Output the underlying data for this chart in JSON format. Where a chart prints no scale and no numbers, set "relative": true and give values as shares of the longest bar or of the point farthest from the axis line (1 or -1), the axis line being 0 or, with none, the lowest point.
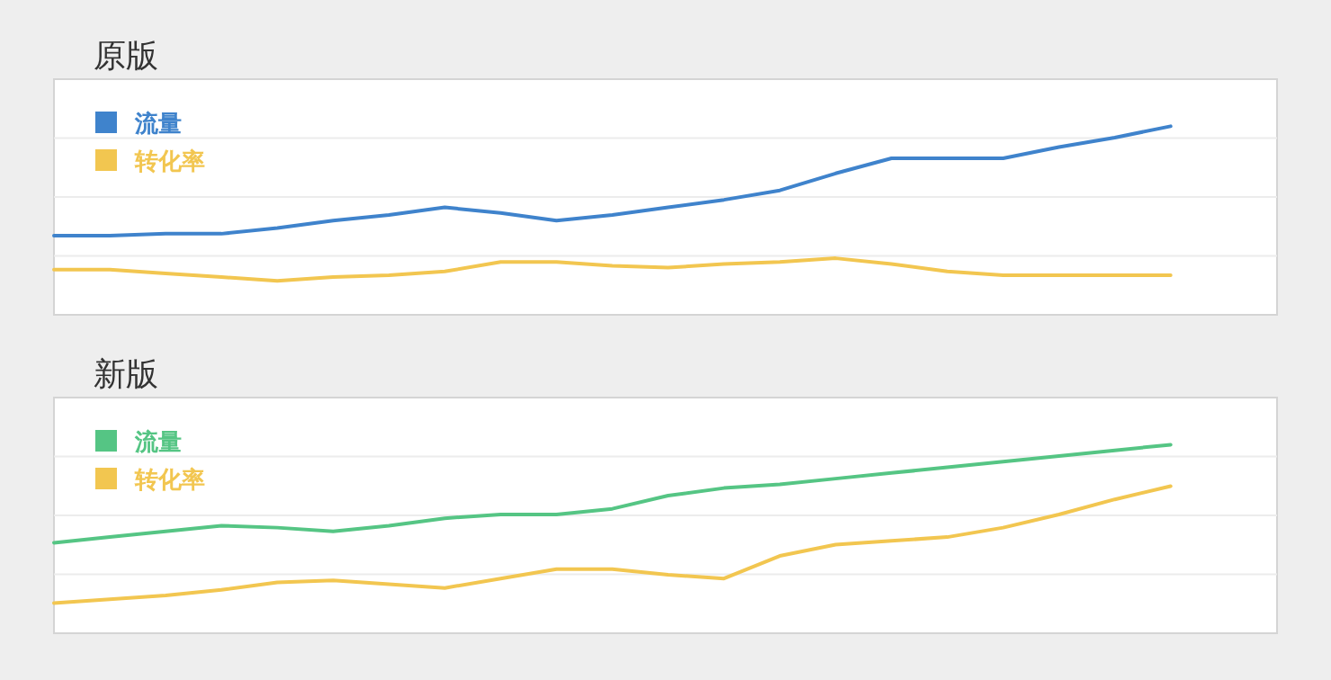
{
  "chart_data": [
    {
      "type": "line",
      "title": "原版",
      "relative": true,
      "grid": "y",
      "legend": "top left",
      "categories": [
        null,
        null,
        null,
        null,
        null,
        null,
        null,
        null,
        null,
        null,
        null,
        null,
        null,
        null,
        null,
        null,
        null,
        null,
        null,
        null,
        null
      ],
      "series": [
        {
          "name": "流量",
          "color": "#3f83cc",
          "values": [
            0.42,
            0.42,
            0.43,
            0.43,
            0.46,
            0.5,
            0.53,
            0.57,
            0.54,
            0.5,
            0.53,
            0.57,
            0.61,
            0.66,
            0.75,
            0.83,
            0.83,
            0.83,
            0.89,
            0.94,
            1
          ]
        },
        {
          "name": "转化率",
          "color": "#f2c650",
          "values": [
            0.24,
            0.24,
            0.22,
            0.2,
            0.18,
            0.2,
            0.21,
            0.23,
            0.28,
            0.28,
            0.26,
            0.25,
            0.27,
            0.28,
            0.3,
            0.27,
            0.23,
            0.21,
            0.21,
            0.21,
            0.21
          ]
        }
      ]
    },
    {
      "type": "line",
      "title": "新版",
      "relative": true,
      "grid": "y",
      "legend": "top left",
      "categories": [
        null,
        null,
        null,
        null,
        null,
        null,
        null,
        null,
        null,
        null,
        null,
        null,
        null,
        null,
        null,
        null,
        null,
        null,
        null,
        null,
        null
      ],
      "series": [
        {
          "name": "流量",
          "color": "#55c584",
          "values": [
            0.48,
            0.51,
            0.54,
            0.57,
            0.56,
            0.54,
            0.57,
            0.61,
            0.63,
            0.63,
            0.66,
            0.73,
            0.77,
            0.79,
            0.82,
            0.85,
            0.88,
            0.91,
            0.94,
            0.97,
            1
          ]
        },
        {
          "name": "转化率",
          "color": "#f2c650",
          "values": [
            0.16,
            0.18,
            0.2,
            0.23,
            0.27,
            0.28,
            0.26,
            0.24,
            0.29,
            0.34,
            0.34,
            0.31,
            0.29,
            0.41,
            0.47,
            0.49,
            0.51,
            0.56,
            0.63,
            0.71,
            0.78
          ]
        }
      ]
    }
  ]
}
